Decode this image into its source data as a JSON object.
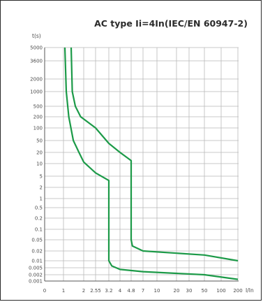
{
  "chart_data": {
    "type": "line",
    "title": "AC type Ii=4In(IEC/EN 60947-2)",
    "ylabel": "t(s)",
    "xlabel": "I/In",
    "x_scale": "categorical-log",
    "y_scale": "categorical-log",
    "x_ticks": [
      "0",
      "1",
      "2",
      "2.55",
      "3.2",
      "4",
      "4.8",
      "7",
      "10",
      "20",
      "30",
      "50",
      "100",
      "200"
    ],
    "y_ticks": [
      "5000",
      "3600",
      "2000",
      "1000",
      "500",
      "200",
      "100",
      "50",
      "20",
      "10",
      "5",
      "2",
      "1",
      "0.5",
      "0.2",
      "0.1",
      "0.05",
      "0.02",
      "0.01",
      "0.005",
      "0.002",
      "0.001"
    ],
    "grid": true,
    "line_color": "#1c9a48",
    "series": [
      {
        "points": [
          [
            1.05,
            5000
          ],
          [
            1.1,
            1000
          ],
          [
            1.2,
            200
          ],
          [
            1.4,
            50
          ],
          [
            1.7,
            20
          ],
          [
            2,
            11
          ],
          [
            2.55,
            6
          ],
          [
            3.2,
            3.5
          ],
          [
            3.2,
            0.01
          ],
          [
            3.4,
            0.006
          ],
          [
            4,
            0.004
          ],
          [
            7,
            0.003
          ],
          [
            50,
            0.002
          ],
          [
            200,
            0.0012
          ]
        ]
      },
      {
        "points": [
          [
            1.3,
            5000
          ],
          [
            1.35,
            1000
          ],
          [
            1.5,
            500
          ],
          [
            1.8,
            200
          ],
          [
            2.55,
            100
          ],
          [
            3.2,
            40
          ],
          [
            4,
            20
          ],
          [
            4.8,
            12
          ],
          [
            4.8,
            0.05
          ],
          [
            5,
            0.03
          ],
          [
            7,
            0.02
          ],
          [
            50,
            0.015
          ],
          [
            200,
            0.01
          ]
        ]
      }
    ]
  }
}
